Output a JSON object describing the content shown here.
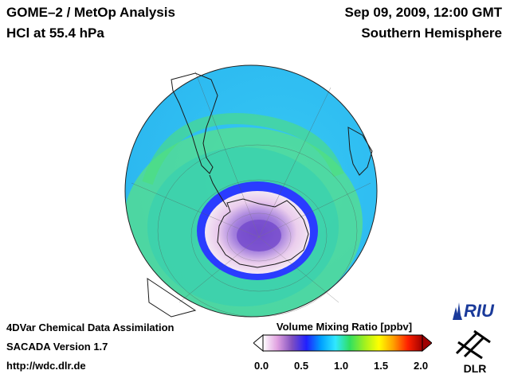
{
  "header": {
    "title_line1": "GOME–2 / MetOp Analysis",
    "title_line2": "HCl at 55.4 hPa",
    "date": "Sep 09, 2009, 12:00 GMT",
    "hemisphere": "Southern Hemisphere"
  },
  "footer": {
    "line1": "4DVar Chemical Data Assimilation",
    "line2": "SACADA Version 1.7",
    "line3": "http://wdc.dlr.de"
  },
  "colorbar": {
    "title": "Volume Mixing Ratio [ppbv]",
    "ticks": [
      "0.0",
      "0.5",
      "1.0",
      "1.5",
      "2.0"
    ],
    "min": 0.0,
    "max": 2.0,
    "colors": [
      "#ffffff",
      "#e0a0e0",
      "#8050c0",
      "#2020ff",
      "#00a0ff",
      "#30e8ff",
      "#30e060",
      "#a0f020",
      "#ffff00",
      "#ffa000",
      "#ff2000",
      "#a00000"
    ]
  },
  "logos": {
    "riu": "RIU",
    "dlr": "DLR"
  },
  "map_colors": {
    "ocean_background": "#36c8f4",
    "mid_band": "#3fe07a",
    "vortex_edge": "#2a3cff",
    "vortex_core": "#5a2cc8",
    "continent_line": "#1a1a1a"
  }
}
